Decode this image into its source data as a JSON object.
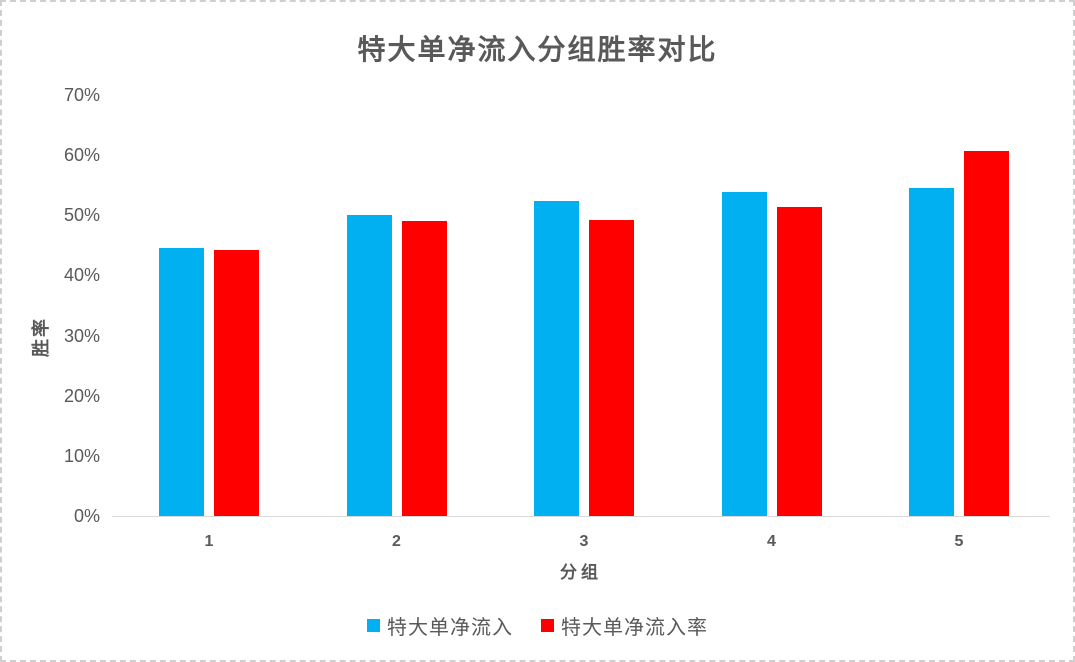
{
  "page": {
    "background": "#ffffff",
    "border_color": "#cfcfcf"
  },
  "chart_data": {
    "type": "bar",
    "title": "特大单净流入分组胜率对比",
    "xlabel": "分组",
    "ylabel": "胜率",
    "categories": [
      "1",
      "2",
      "3",
      "4",
      "5"
    ],
    "series": [
      {
        "name": "特大单净流入",
        "color": "#00B0F0",
        "values": [
          44.6,
          50.1,
          52.3,
          53.9,
          54.6
        ]
      },
      {
        "name": "特大单净流入率",
        "color": "#FF0000",
        "values": [
          44.2,
          49.0,
          49.2,
          51.3,
          60.7
        ]
      }
    ],
    "value_unit": "%",
    "ylim": [
      0,
      70
    ],
    "y_ticks": [
      {
        "value": 0,
        "label": "0%"
      },
      {
        "value": 10,
        "label": "10%"
      },
      {
        "value": 20,
        "label": "20%"
      },
      {
        "value": 30,
        "label": "30%"
      },
      {
        "value": 40,
        "label": "40%"
      },
      {
        "value": 50,
        "label": "50%"
      },
      {
        "value": 60,
        "label": "60%"
      },
      {
        "value": 70,
        "label": "70%"
      }
    ],
    "grid": false,
    "legend_position": "bottom",
    "text_color": "#595959",
    "axis_line_color": "#d9d9d9"
  }
}
